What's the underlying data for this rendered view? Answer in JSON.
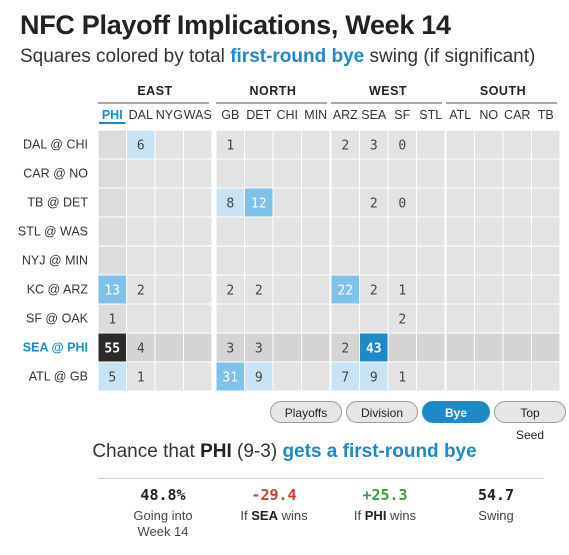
{
  "title": "NFC Playoff Implications, Week 14",
  "subtitle": {
    "before": "Squares colored by total ",
    "highlight": "first-round bye",
    "after": " swing (if significant)"
  },
  "colors": {
    "accent": "#1e88c8",
    "empty_cell": "#e3e3e3",
    "highlight_row": "#d4d4d4",
    "selected_team_col": "#dcdcdc",
    "scale_light": "#c8e3f3",
    "scale_mid": "#7fc1e7",
    "scale_strong": "#1e88c8",
    "scale_top": "#2b2b2b",
    "positive": "#3a9d3a",
    "negative": "#d93b2b"
  },
  "chart_data": {
    "type": "heatmap",
    "conferences": [
      {
        "name": "EAST",
        "teams": [
          "PHI",
          "DAL",
          "NYG",
          "WAS"
        ]
      },
      {
        "name": "NORTH",
        "teams": [
          "GB",
          "DET",
          "CHI",
          "MIN"
        ]
      },
      {
        "name": "WEST",
        "teams": [
          "ARZ",
          "SEA",
          "SF",
          "STL"
        ]
      },
      {
        "name": "SOUTH",
        "teams": [
          "ATL",
          "NO",
          "CAR",
          "TB"
        ]
      }
    ],
    "selected_team": "PHI",
    "highlighted_game": "SEA @ PHI",
    "games": [
      "DAL @ CHI",
      "CAR @ NO",
      "TB @ DET",
      "STL @ WAS",
      "NYJ @ MIN",
      "KC @ ARZ",
      "SF @ OAK",
      "SEA @ PHI",
      "ATL @ GB"
    ],
    "values": [
      [
        null,
        6,
        null,
        null,
        1,
        null,
        null,
        null,
        2,
        3,
        0,
        null,
        null,
        null,
        null,
        null
      ],
      [
        null,
        null,
        null,
        null,
        null,
        null,
        null,
        null,
        null,
        null,
        null,
        null,
        null,
        null,
        null,
        null
      ],
      [
        null,
        null,
        null,
        null,
        8,
        12,
        null,
        null,
        null,
        2,
        0,
        null,
        null,
        null,
        null,
        null
      ],
      [
        null,
        null,
        null,
        null,
        null,
        null,
        null,
        null,
        null,
        null,
        null,
        null,
        null,
        null,
        null,
        null
      ],
      [
        null,
        null,
        null,
        null,
        null,
        null,
        null,
        null,
        null,
        null,
        null,
        null,
        null,
        null,
        null,
        null
      ],
      [
        13,
        2,
        null,
        null,
        2,
        2,
        null,
        null,
        22,
        2,
        1,
        null,
        null,
        null,
        null,
        null
      ],
      [
        1,
        null,
        null,
        null,
        null,
        null,
        null,
        null,
        null,
        null,
        2,
        null,
        null,
        null,
        null,
        null
      ],
      [
        55,
        4,
        null,
        null,
        3,
        3,
        null,
        null,
        2,
        43,
        null,
        null,
        null,
        null,
        null,
        null
      ],
      [
        5,
        1,
        null,
        null,
        31,
        9,
        null,
        null,
        7,
        9,
        1,
        null,
        null,
        null,
        null,
        null
      ]
    ]
  },
  "buttons": [
    {
      "label": "Playoffs",
      "active": false
    },
    {
      "label": "Division",
      "active": false
    },
    {
      "label": "Bye",
      "active": true
    },
    {
      "label": "Top Seed",
      "active": false
    }
  ],
  "chance": {
    "prefix": "Chance that ",
    "team": "PHI",
    "record": " (9-3) ",
    "highlight": "gets a first-round bye"
  },
  "stats": [
    {
      "value": "48.8%",
      "label_line1": "Going into",
      "label_bold": "",
      "label_line2": "Week 14",
      "color": "#222222"
    },
    {
      "value": "-29.4",
      "label_line1": "If ",
      "label_bold": "SEA",
      "label_line2": " wins",
      "color": "#d93b2b"
    },
    {
      "value": "+25.3",
      "label_line1": "If ",
      "label_bold": "PHI",
      "label_line2": " wins",
      "color": "#3a9d3a"
    },
    {
      "value": "54.7",
      "label_line1": "Swing",
      "label_bold": "",
      "label_line2": "",
      "color": "#222222"
    }
  ]
}
